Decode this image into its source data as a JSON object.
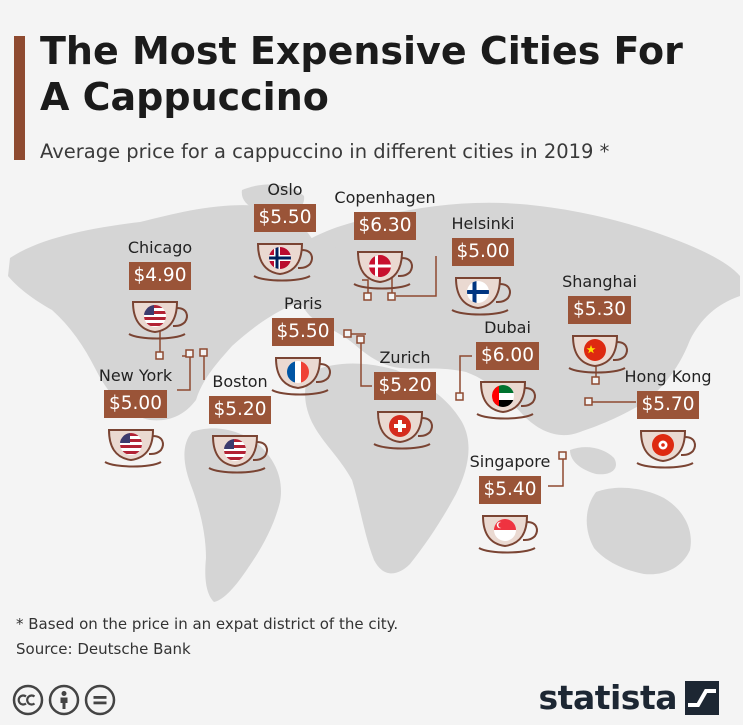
{
  "title": "The Most Expensive Cities For A Cappuccino",
  "subtitle": "Average price for a cappuccino in different cities in 2019 *",
  "footnote": "* Based on the price in an expat district of the city.",
  "source": "Source: Deutsche Bank",
  "brand": "statista",
  "colors": {
    "accent": "#8e4a30",
    "price_tag": "#9a5438",
    "map_land": "#d5d5d5",
    "cup_fill": "#ead9d1",
    "cup_stroke": "#7a4433"
  },
  "icons": [
    "cc-icon",
    "attribution-icon",
    "noderivs-icon",
    "statista-logo-icon"
  ],
  "cities": [
    {
      "name": "Chicago",
      "price": "$4.90",
      "flag": "us-flag-icon"
    },
    {
      "name": "Oslo",
      "price": "$5.50",
      "flag": "norway-flag-icon"
    },
    {
      "name": "Copenhagen",
      "price": "$6.30",
      "flag": "denmark-flag-icon"
    },
    {
      "name": "Helsinki",
      "price": "$5.00",
      "flag": "finland-flag-icon"
    },
    {
      "name": "Paris",
      "price": "$5.50",
      "flag": "france-flag-icon"
    },
    {
      "name": "Zurich",
      "price": "$5.20",
      "flag": "switzerland-flag-icon"
    },
    {
      "name": "Dubai",
      "price": "$6.00",
      "flag": "uae-flag-icon"
    },
    {
      "name": "Shanghai",
      "price": "$5.30",
      "flag": "china-flag-icon"
    },
    {
      "name": "Hong Kong",
      "price": "$5.70",
      "flag": "hong-kong-flag-icon"
    },
    {
      "name": "Singapore",
      "price": "$5.40",
      "flag": "singapore-flag-icon"
    },
    {
      "name": "New York",
      "price": "$5.00",
      "flag": "us-flag-icon"
    },
    {
      "name": "Boston",
      "price": "$5.20",
      "flag": "us-flag-icon"
    }
  ]
}
